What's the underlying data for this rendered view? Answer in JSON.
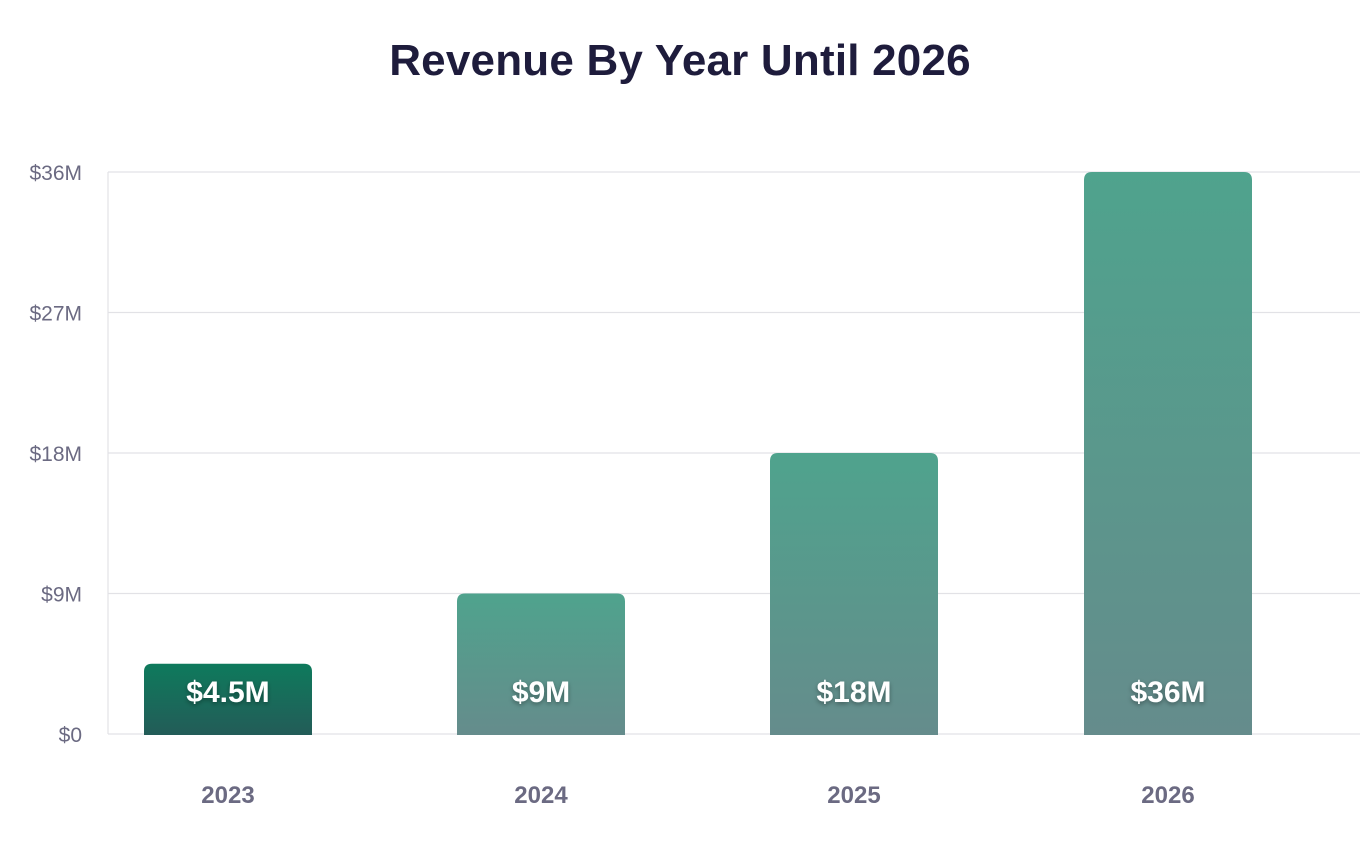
{
  "chart_data": {
    "type": "bar",
    "title": "Revenue By Year Until 2026",
    "xlabel": "",
    "ylabel": "",
    "categories": [
      "2023",
      "2024",
      "2025",
      "2026"
    ],
    "values": [
      4.5,
      9,
      18,
      36
    ],
    "data_labels": [
      "$4.5M",
      "$9M",
      "$18M",
      "$36M"
    ],
    "ylim": [
      0,
      36
    ],
    "yticks": [
      0,
      9,
      18,
      27,
      36
    ],
    "ytick_labels": [
      "$0",
      "$9M",
      "$18M",
      "$27M",
      "$36M"
    ],
    "grid": true,
    "highlighted_category": "2023",
    "colors": {
      "title": "#1e1c3c",
      "tick_text": "#6b6a82",
      "gridline": "#e2e2e6",
      "bar_top": "#4fa38d",
      "bar_bottom": "#658c8c",
      "highlight_top": "#0e7a5c",
      "highlight_bottom": "#235c58",
      "label": "#ffffff"
    }
  }
}
